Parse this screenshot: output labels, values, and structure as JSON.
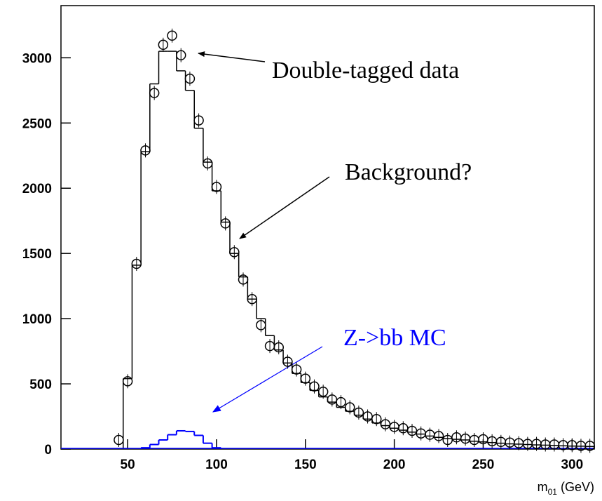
{
  "chart_data": {
    "type": "histogram",
    "xlabel": [
      "m",
      "01",
      " (GeV)"
    ],
    "xlim": [
      12.5,
      312.5
    ],
    "xticks": [
      50,
      100,
      150,
      200,
      250,
      300
    ],
    "ylim": [
      0,
      3400
    ],
    "yticks": [
      0,
      500,
      1000,
      1500,
      2000,
      2500,
      3000
    ],
    "background": {
      "color": "#000000",
      "bins": [
        47.5,
        52.5,
        57.5,
        62.5,
        67.5,
        72.5,
        77.5,
        82.5,
        87.5,
        92.5,
        97.5,
        102.5,
        107.5,
        112.5,
        117.5,
        122.5,
        127.5,
        132.5,
        137.5,
        142.5,
        147.5,
        152.5,
        157.5,
        162.5,
        167.5,
        172.5,
        177.5,
        182.5,
        187.5,
        192.5,
        197.5,
        202.5,
        207.5,
        212.5,
        217.5,
        222.5,
        227.5,
        232.5,
        237.5,
        242.5,
        247.5,
        252.5,
        257.5,
        262.5,
        267.5,
        272.5,
        277.5,
        282.5,
        287.5,
        292.5,
        297.5,
        302.5,
        307.5,
        312.5
      ],
      "counts": [
        540,
        1410,
        2280,
        2800,
        3050,
        3050,
        2900,
        2750,
        2460,
        2200,
        1980,
        1740,
        1500,
        1320,
        1150,
        1000,
        870,
        760,
        660,
        580,
        510,
        450,
        400,
        360,
        320,
        290,
        260,
        230,
        200,
        180,
        160,
        145,
        130,
        115,
        100,
        90,
        80,
        75,
        70,
        60,
        55,
        50,
        45,
        40,
        38,
        35,
        32,
        30,
        28,
        25,
        23,
        22,
        20
      ]
    },
    "mc": {
      "color": "#0000ff",
      "bins": [
        57.5,
        62.5,
        67.5,
        72.5,
        77.5,
        82.5,
        87.5,
        92.5,
        97.5,
        102.5
      ],
      "counts": [
        10,
        35,
        70,
        110,
        140,
        135,
        105,
        45,
        10
      ]
    },
    "data_points": {
      "color": "#000000",
      "x": [
        45,
        50,
        55,
        60,
        65,
        70,
        75,
        80,
        85,
        90,
        95,
        100,
        105,
        110,
        115,
        120,
        125,
        130,
        135,
        140,
        145,
        150,
        155,
        160,
        165,
        170,
        175,
        180,
        185,
        190,
        195,
        200,
        205,
        210,
        215,
        220,
        225,
        230,
        235,
        240,
        245,
        250,
        255,
        260,
        265,
        270,
        275,
        280,
        285,
        290,
        295,
        300,
        305,
        310
      ],
      "values": [
        70,
        520,
        1420,
        2290,
        2730,
        3100,
        3170,
        3020,
        2840,
        2520,
        2190,
        2010,
        1730,
        1510,
        1300,
        1150,
        950,
        790,
        780,
        670,
        610,
        540,
        480,
        440,
        380,
        360,
        320,
        280,
        250,
        230,
        190,
        170,
        160,
        140,
        120,
        110,
        100,
        70,
        90,
        80,
        70,
        75,
        60,
        55,
        50,
        45,
        40,
        40,
        35,
        35,
        30,
        30,
        25,
        25
      ]
    },
    "annotations": [
      {
        "text": "Double-tagged data",
        "color": "#000000"
      },
      {
        "text": "Background?",
        "color": "#000000"
      },
      {
        "text": "Z->bb MC",
        "color": "#0000ff"
      }
    ]
  }
}
